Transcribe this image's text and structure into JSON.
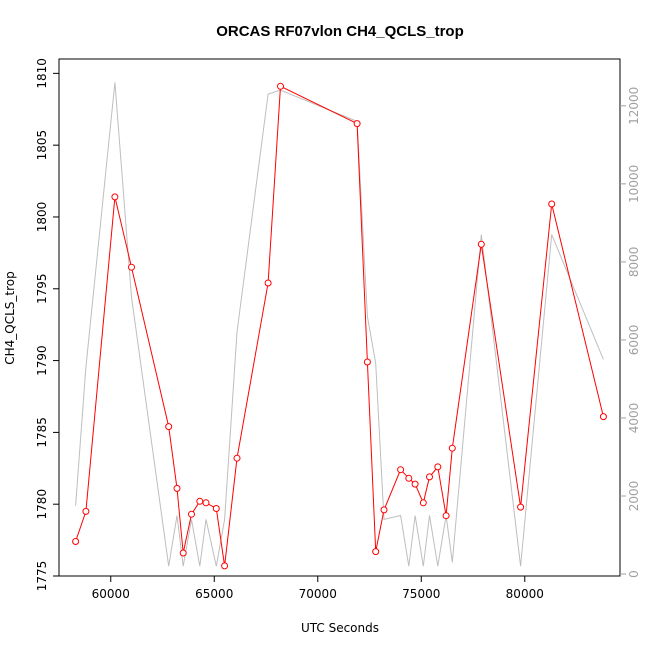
{
  "chart_data": {
    "type": "line",
    "title": "ORCAS RF07vlon CH4_QCLS_trop",
    "xlabel": "UTC Seconds",
    "ylabel": "CH4_QCLS_trop",
    "xlim": [
      57500,
      84600
    ],
    "ylim": [
      1775,
      1811
    ],
    "y2lim": [
      -50,
      13200
    ],
    "x_ticks": [
      60000,
      65000,
      70000,
      75000,
      80000
    ],
    "y_ticks": [
      1775,
      1780,
      1785,
      1790,
      1795,
      1800,
      1805,
      1810
    ],
    "y2_ticks": [
      0,
      2000,
      4000,
      6000,
      8000,
      10000,
      12000
    ],
    "colors": {
      "primary": "#ff0000",
      "secondary": "#bebebe"
    },
    "series": [
      {
        "role": "primary",
        "axis": "left",
        "x": [
          58300,
          58800,
          60200,
          61000,
          62800,
          63200,
          63500,
          63900,
          64300,
          64600,
          65100,
          65500,
          66100,
          67600,
          68200,
          71900,
          72400,
          72800,
          73200,
          74000,
          74400,
          74700,
          75100,
          75400,
          75800,
          76200,
          76500,
          77900,
          79800,
          81300,
          83800
        ],
        "y": [
          1777.4,
          1779.5,
          1801.4,
          1796.5,
          1785.4,
          1781.1,
          1776.6,
          1779.3,
          1780.2,
          1780.1,
          1779.7,
          1775.7,
          1783.2,
          1795.4,
          1809.1,
          1806.5,
          1789.9,
          1776.7,
          1779.6,
          1782.4,
          1781.8,
          1781.4,
          1780.1,
          1781.9,
          1782.6,
          1779.2,
          1783.9,
          1798.1,
          1779.8,
          1800.9,
          1786.1
        ]
      },
      {
        "role": "secondary",
        "axis": "right",
        "x": [
          58300,
          58800,
          60200,
          61000,
          62800,
          63200,
          63500,
          63900,
          64300,
          64600,
          65100,
          65500,
          66100,
          67600,
          68200,
          71900,
          72400,
          72800,
          73200,
          74000,
          74400,
          74700,
          75100,
          75400,
          75800,
          76200,
          76500,
          77900,
          79800,
          81300,
          83800
        ],
        "y": [
          1750,
          5300,
          12600,
          7100,
          200,
          1500,
          200,
          1400,
          200,
          1400,
          200,
          1400,
          6200,
          12300,
          12400,
          11600,
          6600,
          5400,
          1400,
          1500,
          200,
          1500,
          200,
          1500,
          200,
          1500,
          300,
          8700,
          200,
          8700,
          5500
        ]
      }
    ]
  }
}
